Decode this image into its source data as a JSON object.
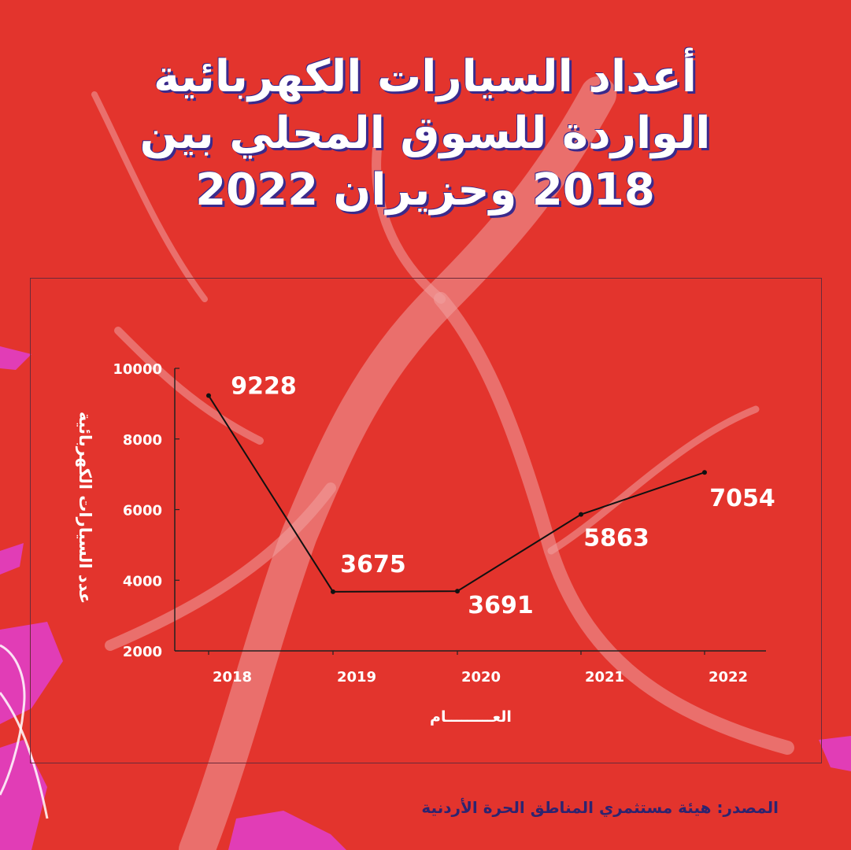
{
  "title_lines": [
    "أعداد السيارات الكهربائية",
    "الواردة للسوق المحلي بين",
    "2018 وحزيران 2022"
  ],
  "source": "المصدر: هيئة مستثمري المناطق الحرة الأردنية",
  "colors": {
    "background": "#e3342d",
    "title_shadow": "#3a2a8c",
    "line": "#111111",
    "labels": "#ffffff",
    "source_text": "#2d2470"
  },
  "chart_data": {
    "type": "line",
    "title": "",
    "xlabel": "العـــــــــام",
    "ylabel": "عدد السيارات الكهربائية",
    "categories": [
      "2018",
      "2019",
      "2020",
      "2021",
      "2022"
    ],
    "values": [
      9228,
      3675,
      3691,
      5863,
      7054
    ],
    "data_labels": [
      "9228",
      "3675",
      "3691",
      "5863",
      "7054"
    ],
    "ylim": [
      2000,
      10000
    ],
    "yticks": [
      "2000",
      "4000",
      "6000",
      "8000",
      "10000"
    ],
    "grid": false,
    "legend": "none"
  }
}
